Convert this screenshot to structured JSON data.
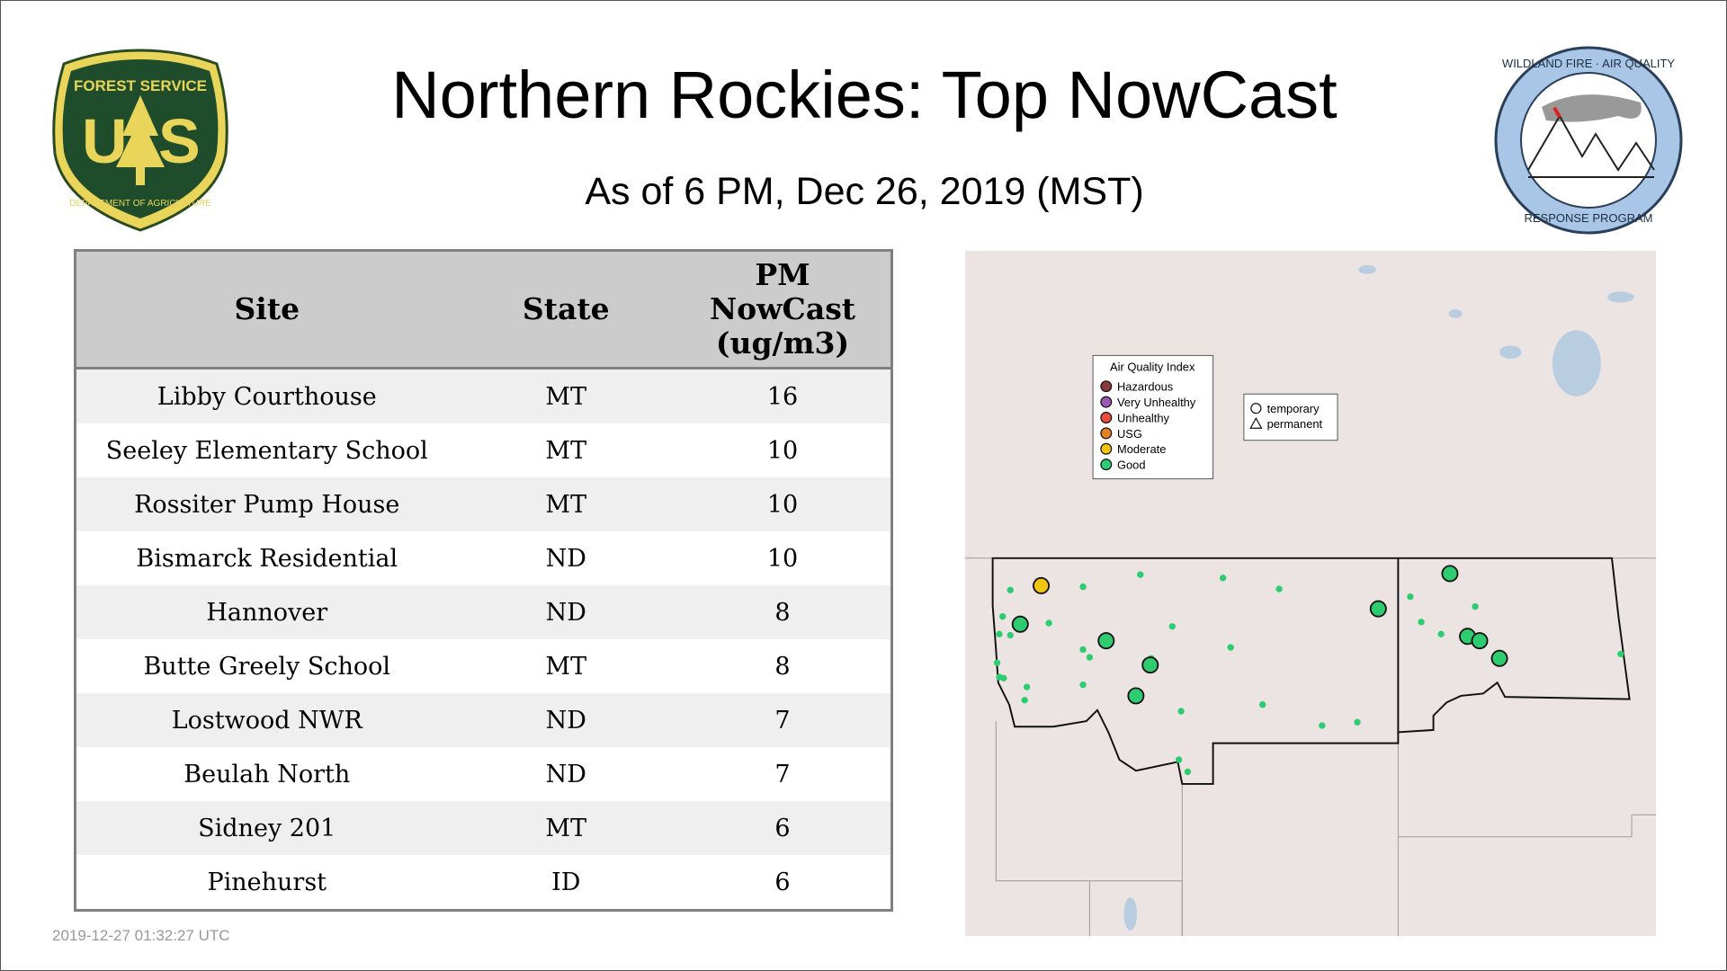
{
  "header": {
    "title": "Northern Rockies: Top NowCast",
    "subtitle": "As of  6 PM, Dec 26, 2019 (MST)"
  },
  "logos": {
    "left": "FOREST SERVICE U S DEPARTMENT OF AGRICULTURE",
    "right": "WILDLAND FIRE · AIR QUALITY RESPONSE PROGRAM"
  },
  "table": {
    "columns": [
      "Site",
      "State",
      "PM NowCast (ug/m3)"
    ],
    "rows": [
      [
        "Libby Courthouse",
        "MT",
        "16"
      ],
      [
        "Seeley Elementary School",
        "MT",
        "10"
      ],
      [
        "Rossiter Pump House",
        "MT",
        "10"
      ],
      [
        "Bismarck Residential",
        "ND",
        "10"
      ],
      [
        "Hannover",
        "ND",
        "8"
      ],
      [
        "Butte Greely School",
        "MT",
        "8"
      ],
      [
        "Lostwood NWR",
        "ND",
        "7"
      ],
      [
        "Beulah North",
        "ND",
        "7"
      ],
      [
        "Sidney 201",
        "MT",
        "6"
      ],
      [
        "Pinehurst",
        "ID",
        "6"
      ]
    ]
  },
  "map": {
    "legend_title": "Air Quality Index",
    "legend": [
      {
        "label": "Hazardous",
        "color": "#8b3a3a"
      },
      {
        "label": "Very Unhealthy",
        "color": "#9b59b6"
      },
      {
        "label": "Unhealthy",
        "color": "#e74c3c"
      },
      {
        "label": "USG",
        "color": "#e67e22"
      },
      {
        "label": "Moderate",
        "color": "#f1c40f"
      },
      {
        "label": "Good",
        "color": "#2ecc71"
      }
    ],
    "shape_legend": [
      "temporary",
      "permanent"
    ]
  },
  "timestamp": "2019-12-27 01:32:27 UTC"
}
